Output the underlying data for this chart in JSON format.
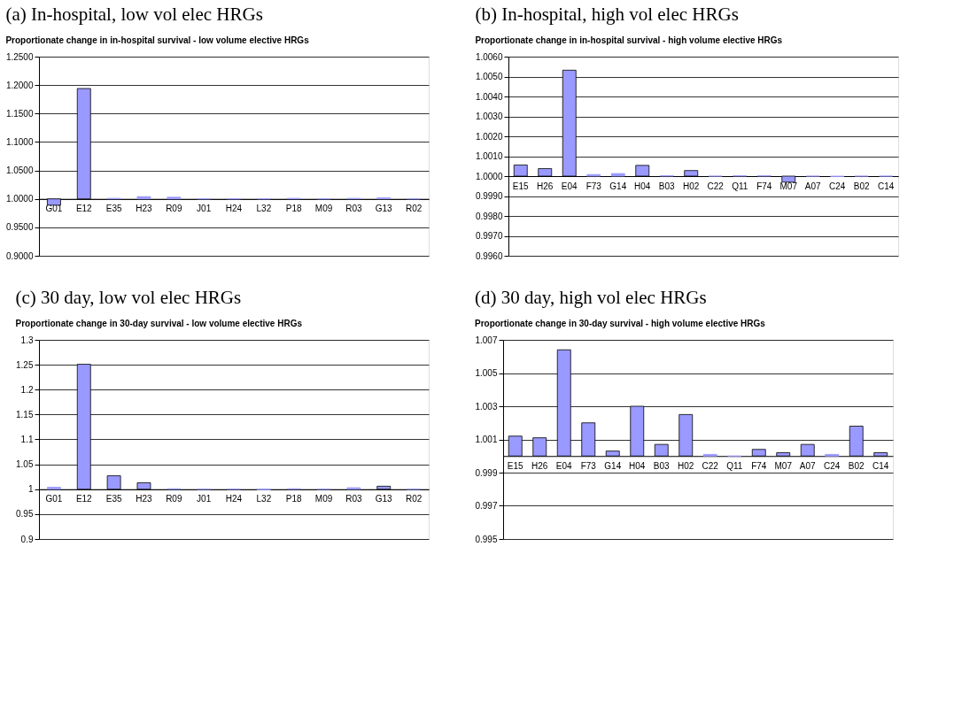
{
  "chart_data": [
    {
      "type": "bar",
      "title": "(a) In-hospital, low vol elec HRGs",
      "subtitle": "Proportionate change in in-hospital survival - low volume elective HRGs",
      "categories": [
        "G01",
        "E12",
        "E35",
        "H23",
        "R09",
        "J01",
        "H24",
        "L32",
        "P18",
        "M09",
        "R03",
        "G13",
        "R02"
      ],
      "base": [
        1,
        1,
        1,
        1,
        1,
        1,
        1,
        1,
        1,
        1,
        1,
        1,
        1
      ],
      "values": [
        -0.011,
        0.194,
        0.001,
        0.004,
        0.003,
        0,
        0,
        0,
        0.001,
        0,
        0.001,
        0.002,
        0
      ],
      "color": "#9999ff",
      "grid": "y",
      "ylim": [
        0.9,
        1.25
      ],
      "yticks": [
        {
          "value": 0.9,
          "label": "0.9000"
        },
        {
          "value": 0.95,
          "label": "0.9500"
        },
        {
          "value": 1.0,
          "label": "1.0000"
        },
        {
          "value": 1.05,
          "label": "1.0500"
        },
        {
          "value": 1.1,
          "label": "1.1000"
        },
        {
          "value": 1.15,
          "label": "1.1500"
        },
        {
          "value": 1.2,
          "label": "1.2000"
        },
        {
          "value": 1.25,
          "label": "1.2500"
        }
      ]
    },
    {
      "type": "bar",
      "title": "(b) In-hospital, high vol elec HRGs",
      "subtitle": "Proportionate change in in-hospital survival - high volume elective HRGs",
      "categories": [
        "E15",
        "H26",
        "E04",
        "F73",
        "G14",
        "H04",
        "B03",
        "H02",
        "C22",
        "Q11",
        "F74",
        "M07",
        "A07",
        "C24",
        "B02",
        "C14"
      ],
      "base": [
        1,
        1,
        1,
        1,
        1,
        1,
        1,
        1,
        1,
        1,
        1,
        1,
        1,
        1,
        1,
        1
      ],
      "values": [
        0.00056,
        0.00038,
        0.00532,
        8e-05,
        0.00013,
        0.00054,
        2e-05,
        0.00028,
        0,
        2e-05,
        2e-05,
        -0.0003,
        0,
        -2e-05,
        0,
        0
      ],
      "color": "#9999ff",
      "grid": "y",
      "ylim": [
        0.996,
        1.006
      ],
      "yticks": [
        {
          "value": 0.996,
          "label": "0.9960"
        },
        {
          "value": 0.997,
          "label": "0.9970"
        },
        {
          "value": 0.998,
          "label": "0.9980"
        },
        {
          "value": 0.999,
          "label": "0.9990"
        },
        {
          "value": 1.0,
          "label": "1.0000"
        },
        {
          "value": 1.001,
          "label": "1.0010"
        },
        {
          "value": 1.002,
          "label": "1.0020"
        },
        {
          "value": 1.003,
          "label": "1.0030"
        },
        {
          "value": 1.004,
          "label": "1.0040"
        },
        {
          "value": 1.005,
          "label": "1.0050"
        },
        {
          "value": 1.006,
          "label": "1.0060"
        }
      ]
    },
    {
      "type": "bar",
      "title": "(c) 30 day, low vol elec HRGs",
      "subtitle": "Proportionate change in 30-day survival - low volume elective HRGs",
      "categories": [
        "G01",
        "E12",
        "E35",
        "H23",
        "R09",
        "J01",
        "H24",
        "L32",
        "P18",
        "M09",
        "R03",
        "G13",
        "R02"
      ],
      "base": [
        1,
        1,
        1,
        1,
        1,
        1,
        1,
        1,
        1,
        1,
        1,
        1,
        1
      ],
      "values": [
        0.004,
        0.251,
        0.027,
        0.013,
        0.001,
        0,
        0,
        -0.001,
        0.001,
        0,
        0.003,
        0.006,
        0
      ],
      "color": "#9999ff",
      "grid": "y",
      "ylim": [
        0.9,
        1.3
      ],
      "yticks": [
        0.9,
        0.95,
        1,
        1.05,
        1.1,
        1.15,
        1.2,
        1.25,
        1.3
      ]
    },
    {
      "type": "bar",
      "title": "(d) 30 day, high vol elec HRGs",
      "subtitle": "Proportionate change in 30-day survival - high volume elective HRGs",
      "categories": [
        "E15",
        "H26",
        "E04",
        "F73",
        "G14",
        "H04",
        "B03",
        "H02",
        "C22",
        "Q11",
        "F74",
        "M07",
        "A07",
        "C24",
        "B02",
        "C14"
      ],
      "base": [
        1,
        1,
        1,
        1,
        1,
        1,
        1,
        1,
        1,
        1,
        1,
        1,
        1,
        1,
        1,
        1
      ],
      "values": [
        0.0012,
        0.0011,
        0.0064,
        0.002,
        0.0003,
        0.003,
        0.0007,
        0.0025,
        0.0001,
        0,
        0.0004,
        0.0002,
        0.0007,
        0.0001,
        0.0018,
        0.0002
      ],
      "color": "#9999ff",
      "grid": "y",
      "ylim": [
        0.995,
        1.007
      ],
      "yticks": [
        0.995,
        0.997,
        0.999,
        1.001,
        1.003,
        1.005,
        1.007
      ]
    }
  ]
}
